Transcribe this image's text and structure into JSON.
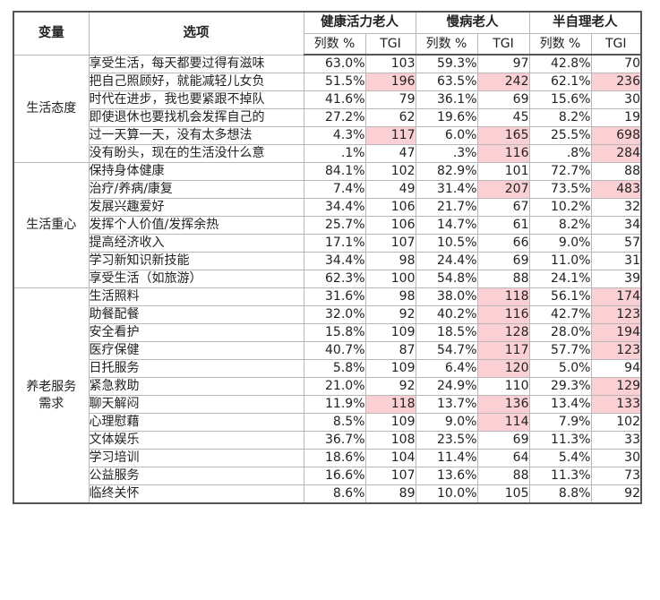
{
  "header": {
    "variable": "变量",
    "option": "选项",
    "groups": [
      "健康活力老人",
      "慢病老人",
      "半自理老人"
    ],
    "pct_label": "列数 %",
    "tgi_label": "TGI"
  },
  "highlight_color": "#fbd0d5",
  "sections": [
    {
      "label": "生活态度",
      "rows": [
        {
          "option": "享受生活，每天都要过得有滋味",
          "values": [
            "63.0%",
            "103",
            "59.3%",
            "97",
            "42.8%",
            "70"
          ],
          "hl": [
            false,
            false,
            false
          ]
        },
        {
          "option": "把自己照顾好，就能减轻儿女负",
          "values": [
            "51.5%",
            "196",
            "63.5%",
            "242",
            "62.1%",
            "236"
          ],
          "hl": [
            true,
            true,
            true
          ]
        },
        {
          "option": "时代在进步，我也要紧跟不掉队",
          "values": [
            "41.6%",
            "79",
            "36.1%",
            "69",
            "15.6%",
            "30"
          ],
          "hl": [
            false,
            false,
            false
          ]
        },
        {
          "option": "即使退休也要找机会发挥自己的",
          "values": [
            "27.2%",
            "62",
            "19.6%",
            "45",
            "8.2%",
            "19"
          ],
          "hl": [
            false,
            false,
            false
          ]
        },
        {
          "option": "过一天算一天，没有太多想法",
          "values": [
            "4.3%",
            "117",
            "6.0%",
            "165",
            "25.5%",
            "698"
          ],
          "hl": [
            true,
            true,
            true
          ]
        },
        {
          "option": "没有盼头，现在的生活没什么意",
          "values": [
            ".1%",
            "47",
            ".3%",
            "116",
            ".8%",
            "284"
          ],
          "hl": [
            false,
            true,
            true
          ]
        }
      ]
    },
    {
      "label": "生活重心",
      "rows": [
        {
          "option": "保持身体健康",
          "values": [
            "84.1%",
            "102",
            "82.9%",
            "101",
            "72.7%",
            "88"
          ],
          "hl": [
            false,
            false,
            false
          ]
        },
        {
          "option": "治疗/养病/康复",
          "values": [
            "7.4%",
            "49",
            "31.4%",
            "207",
            "73.5%",
            "483"
          ],
          "hl": [
            false,
            true,
            true
          ]
        },
        {
          "option": "发展兴趣爱好",
          "values": [
            "34.4%",
            "106",
            "21.7%",
            "67",
            "10.2%",
            "32"
          ],
          "hl": [
            false,
            false,
            false
          ]
        },
        {
          "option": "发挥个人价值/发挥余热",
          "values": [
            "25.7%",
            "106",
            "14.7%",
            "61",
            "8.2%",
            "34"
          ],
          "hl": [
            false,
            false,
            false
          ]
        },
        {
          "option": "提高经济收入",
          "values": [
            "17.1%",
            "107",
            "10.5%",
            "66",
            "9.0%",
            "57"
          ],
          "hl": [
            false,
            false,
            false
          ]
        },
        {
          "option": "学习新知识新技能",
          "values": [
            "34.4%",
            "98",
            "24.4%",
            "69",
            "11.0%",
            "31"
          ],
          "hl": [
            false,
            false,
            false
          ]
        },
        {
          "option": "享受生活（如旅游）",
          "values": [
            "62.3%",
            "100",
            "54.8%",
            "88",
            "24.1%",
            "39"
          ],
          "hl": [
            false,
            false,
            false
          ]
        }
      ]
    },
    {
      "label": "养老服务需求",
      "label_lines": [
        "养老服务",
        "需求"
      ],
      "rows": [
        {
          "option": "生活照料",
          "values": [
            "31.6%",
            "98",
            "38.0%",
            "118",
            "56.1%",
            "174"
          ],
          "hl": [
            false,
            true,
            true
          ]
        },
        {
          "option": "助餐配餐",
          "values": [
            "32.0%",
            "92",
            "40.2%",
            "116",
            "42.7%",
            "123"
          ],
          "hl": [
            false,
            true,
            true
          ]
        },
        {
          "option": "安全看护",
          "values": [
            "15.8%",
            "109",
            "18.5%",
            "128",
            "28.0%",
            "194"
          ],
          "hl": [
            false,
            true,
            true
          ]
        },
        {
          "option": "医疗保健",
          "values": [
            "40.7%",
            "87",
            "54.7%",
            "117",
            "57.7%",
            "123"
          ],
          "hl": [
            false,
            true,
            true
          ]
        },
        {
          "option": "日托服务",
          "values": [
            "5.8%",
            "109",
            "6.4%",
            "120",
            "5.0%",
            "94"
          ],
          "hl": [
            false,
            true,
            false
          ]
        },
        {
          "option": "紧急救助",
          "values": [
            "21.0%",
            "92",
            "24.9%",
            "110",
            "29.3%",
            "129"
          ],
          "hl": [
            false,
            false,
            true
          ]
        },
        {
          "option": "聊天解闷",
          "values": [
            "11.9%",
            "118",
            "13.7%",
            "136",
            "13.4%",
            "133"
          ],
          "hl": [
            true,
            true,
            true
          ]
        },
        {
          "option": "心理慰藉",
          "values": [
            "8.5%",
            "109",
            "9.0%",
            "114",
            "7.9%",
            "102"
          ],
          "hl": [
            false,
            true,
            false
          ]
        },
        {
          "option": "文体娱乐",
          "values": [
            "36.7%",
            "108",
            "23.5%",
            "69",
            "11.3%",
            "33"
          ],
          "hl": [
            false,
            false,
            false
          ]
        },
        {
          "option": "学习培训",
          "values": [
            "18.6%",
            "104",
            "11.4%",
            "64",
            "5.4%",
            "30"
          ],
          "hl": [
            false,
            false,
            false
          ]
        },
        {
          "option": "公益服务",
          "values": [
            "16.6%",
            "107",
            "13.6%",
            "88",
            "11.3%",
            "73"
          ],
          "hl": [
            false,
            false,
            false
          ]
        },
        {
          "option": "临终关怀",
          "values": [
            "8.6%",
            "89",
            "10.0%",
            "105",
            "8.8%",
            "92"
          ],
          "hl": [
            false,
            false,
            false
          ]
        }
      ]
    }
  ],
  "chart_data": {
    "type": "table",
    "columns": [
      "变量",
      "选项",
      "健康活力老人 列数 %",
      "健康活力老人 TGI",
      "慢病老人 列数 %",
      "慢病老人 TGI",
      "半自理老人 列数 %",
      "半自理老人 TGI"
    ],
    "series": [
      {
        "name": "健康活力老人",
        "values_pct": [
          63.0,
          51.5,
          41.6,
          27.2,
          4.3,
          0.1,
          84.1,
          7.4,
          34.4,
          25.7,
          17.1,
          34.4,
          62.3,
          31.6,
          32.0,
          15.8,
          40.7,
          5.8,
          21.0,
          11.9,
          8.5,
          36.7,
          18.6,
          16.6,
          8.6
        ],
        "tgi": [
          103,
          196,
          79,
          62,
          117,
          47,
          102,
          49,
          106,
          106,
          107,
          98,
          100,
          98,
          92,
          109,
          87,
          109,
          92,
          118,
          109,
          108,
          104,
          107,
          89
        ]
      },
      {
        "name": "慢病老人",
        "values_pct": [
          59.3,
          63.5,
          36.1,
          19.6,
          6.0,
          0.3,
          82.9,
          31.4,
          21.7,
          14.7,
          10.5,
          24.4,
          54.8,
          38.0,
          40.2,
          18.5,
          54.7,
          6.4,
          24.9,
          13.7,
          9.0,
          23.5,
          11.4,
          13.6,
          10.0
        ],
        "tgi": [
          97,
          242,
          69,
          45,
          165,
          116,
          101,
          207,
          67,
          61,
          66,
          69,
          88,
          118,
          116,
          128,
          117,
          120,
          110,
          136,
          114,
          69,
          64,
          88,
          105
        ]
      },
      {
        "name": "半自理老人",
        "values_pct": [
          42.8,
          62.1,
          15.6,
          8.2,
          25.5,
          0.8,
          72.7,
          73.5,
          10.2,
          8.2,
          9.0,
          11.0,
          24.1,
          56.1,
          42.7,
          28.0,
          57.7,
          5.0,
          29.3,
          13.4,
          7.9,
          11.3,
          5.4,
          11.3,
          8.8
        ],
        "tgi": [
          70,
          236,
          30,
          19,
          698,
          284,
          88,
          483,
          32,
          34,
          57,
          31,
          39,
          174,
          123,
          194,
          123,
          94,
          129,
          133,
          102,
          33,
          30,
          73,
          92
        ]
      }
    ]
  }
}
